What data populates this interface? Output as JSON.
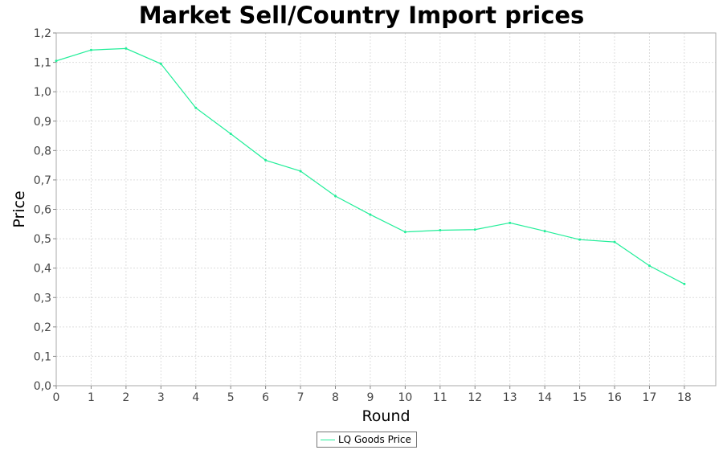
{
  "chart_data": {
    "type": "line",
    "title": "Market Sell/Country Import prices",
    "xlabel": "Round",
    "ylabel": "Price",
    "x": [
      0,
      1,
      2,
      3,
      4,
      5,
      6,
      7,
      8,
      9,
      10,
      11,
      12,
      13,
      14,
      15,
      16,
      17,
      18
    ],
    "x_ticks": [
      "0",
      "1",
      "2",
      "3",
      "4",
      "5",
      "6",
      "7",
      "8",
      "9",
      "10",
      "11",
      "12",
      "13",
      "14",
      "15",
      "16",
      "17",
      "18"
    ],
    "y_ticks": [
      "0,0",
      "0,1",
      "0,2",
      "0,3",
      "0,4",
      "0,5",
      "0,6",
      "0,7",
      "0,8",
      "0,9",
      "1,0",
      "1,1",
      "1,2"
    ],
    "xlim": [
      0,
      18.9
    ],
    "ylim": [
      0,
      1.2
    ],
    "grid": true,
    "legend_position": "bottom-center",
    "series": [
      {
        "name": "LQ Goods Price",
        "color": "#22ee99",
        "values": [
          1.105,
          1.142,
          1.147,
          1.095,
          0.945,
          0.857,
          0.767,
          0.73,
          0.645,
          0.582,
          0.523,
          0.529,
          0.531,
          0.554,
          0.526,
          0.497,
          0.489,
          0.408,
          0.346
        ]
      }
    ]
  }
}
